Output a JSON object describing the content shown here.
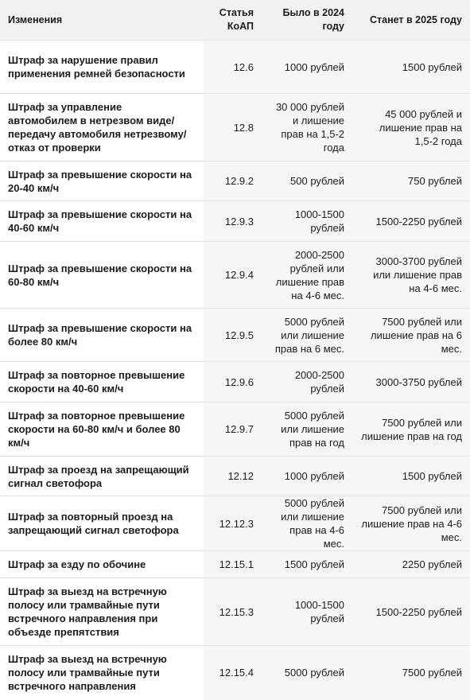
{
  "headers": [
    "Изменения",
    "Статья КоАП",
    "Было в 2024 году",
    "Станет в 2025 году"
  ],
  "rows": [
    {
      "name": "Штраф за нарушение правил применения ремней безопасности",
      "article": "12.6",
      "y2024": "1000 рублей",
      "y2025": "1500 рублей"
    },
    {
      "name": "Штраф за управление автомобилем в нетрезвом виде/передачу автомобиля нетрезвому/отказ от проверки",
      "article": "12.8",
      "y2024": "30 000 рублей и лишение прав на 1,5-2 года",
      "y2025": "45 000 рублей и лишение прав на 1,5-2 года"
    },
    {
      "name": "Штраф за превышение скорости на 20-40 км/ч",
      "article": "12.9.2",
      "y2024": "500 рублей",
      "y2025": "750 рублей"
    },
    {
      "name": "Штраф за превышение скорости на 40-60 км/ч",
      "article": "12.9.3",
      "y2024": "1000-1500 рублей",
      "y2025": "1500-2250 рублей"
    },
    {
      "name": "Штраф за превышение скорости на 60-80 км/ч",
      "article": "12.9.4",
      "y2024": "2000-2500 рублей или лишение прав на 4-6 мес.",
      "y2025": "3000-3700 рублей или лишение прав на 4-6 мес."
    },
    {
      "name": "Штраф за превышение скорости на более 80 км/ч",
      "article": "12.9.5",
      "y2024": "5000 рублей или лишение прав на 6 мес.",
      "y2025": "7500 рублей или лишение прав на 6 мес."
    },
    {
      "name": "Штраф за повторное превышение скорости на 40-60 км/ч",
      "article": "12.9.6",
      "y2024": "2000-2500 рублей",
      "y2025": "3000-3750 рублей"
    },
    {
      "name": "Штраф за повторное превышение скорости на 60-80 км/ч и более 80 км/ч",
      "article": "12.9.7",
      "y2024": "5000 рублей или лишение прав на год",
      "y2025": "7500 рублей или лишение прав на год"
    },
    {
      "name": "Штраф за проезд на запрещающий сигнал светофора",
      "article": "12.12",
      "y2024": "1000 рублей",
      "y2025": "1500 рублей"
    },
    {
      "name": "Штраф за повторный проезд на запрещающий сигнал светофора",
      "article": "12.12.3",
      "y2024": "5000 рублей или лишение прав на 4-6 мес.",
      "y2025": "7500 рублей или лишение прав на 4-6 мес."
    },
    {
      "name": "Штраф за езду по обочине",
      "article": "12.15.1",
      "y2024": "1500 рублей",
      "y2025": "2250 рублей"
    },
    {
      "name": "Штраф за выезд на встречную полосу или трамвайные пути встречного направления при объезде препятствия",
      "article": "12.15.3",
      "y2024": "1000-1500 рублей",
      "y2025": "1500-2250 рублей"
    },
    {
      "name": "Штраф за выезд на встречную полосу или трамвайные пути встречного направления",
      "article": "12.15.4",
      "y2024": "5000 рублей",
      "y2025": "7500 рублей"
    }
  ]
}
